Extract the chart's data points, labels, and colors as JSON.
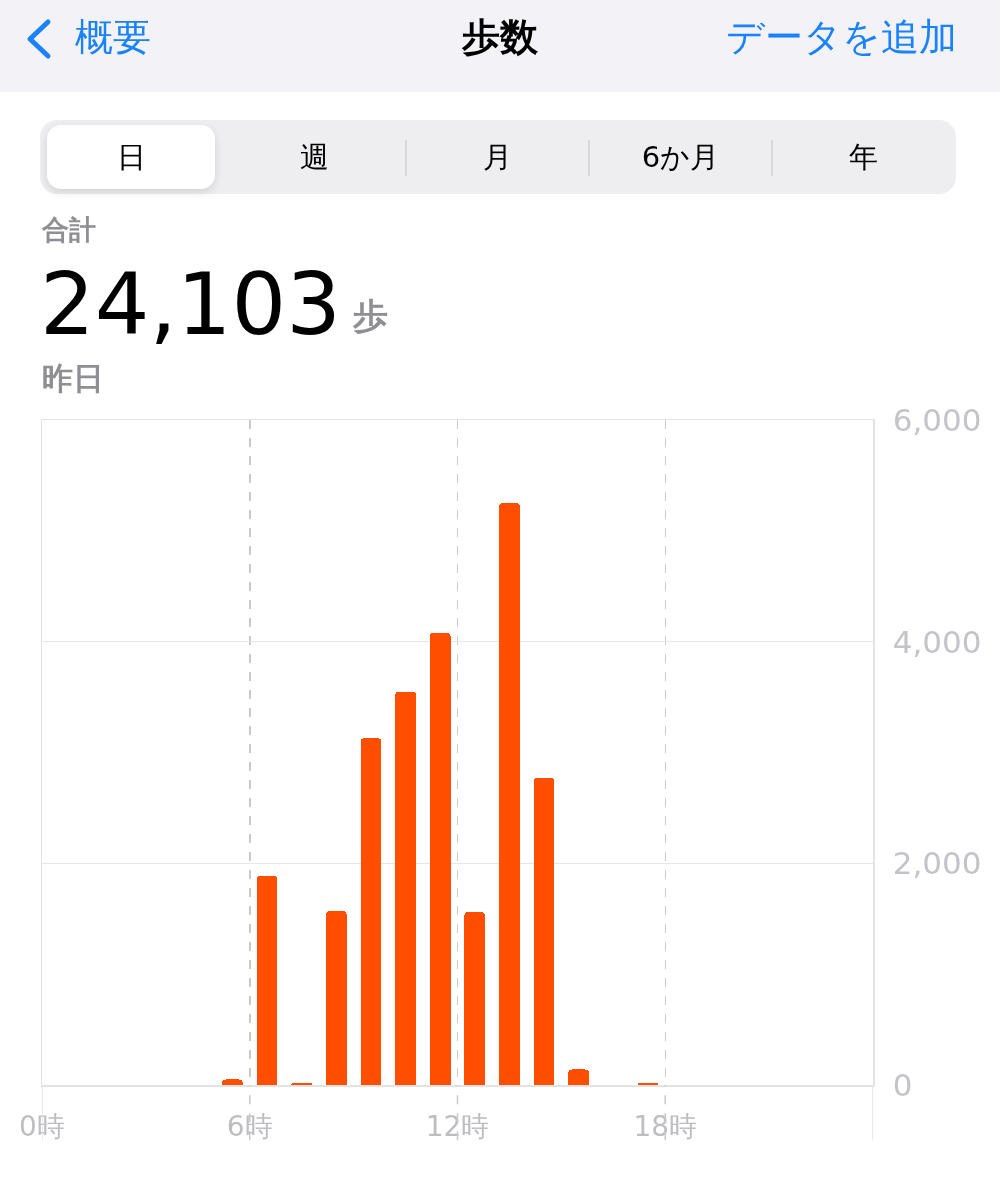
{
  "chart_data": {
    "type": "bar",
    "title": "歩数",
    "annotations": [
      "概要",
      "データを追加",
      "日",
      "週",
      "月",
      "6か月",
      "年",
      "合計",
      "24,103",
      "歩",
      "昨日"
    ],
    "x": [
      5.5,
      6.5,
      7.5,
      8.5,
      9.5,
      10.5,
      11.5,
      12.5,
      13.5,
      14.5,
      15.5,
      17.5
    ],
    "values": [
      50,
      1890,
      20,
      1570,
      3130,
      3550,
      4080,
      1560,
      5250,
      2770,
      140,
      20
    ],
    "color": "#ff4e00",
    "xlim": [
      0,
      24
    ],
    "xticks": [
      {
        "value": 0,
        "label": "0時"
      },
      {
        "value": 6,
        "label": "6時"
      },
      {
        "value": 12,
        "label": "12時"
      },
      {
        "value": 18,
        "label": "18時"
      }
    ],
    "ylim": [
      0,
      6000
    ],
    "yticks": [
      0,
      {
        "value": 2000,
        "label": "2,000"
      },
      {
        "value": 4000,
        "label": "4,000"
      },
      {
        "value": 6000,
        "label": "6,000"
      }
    ],
    "grid": true
  }
}
